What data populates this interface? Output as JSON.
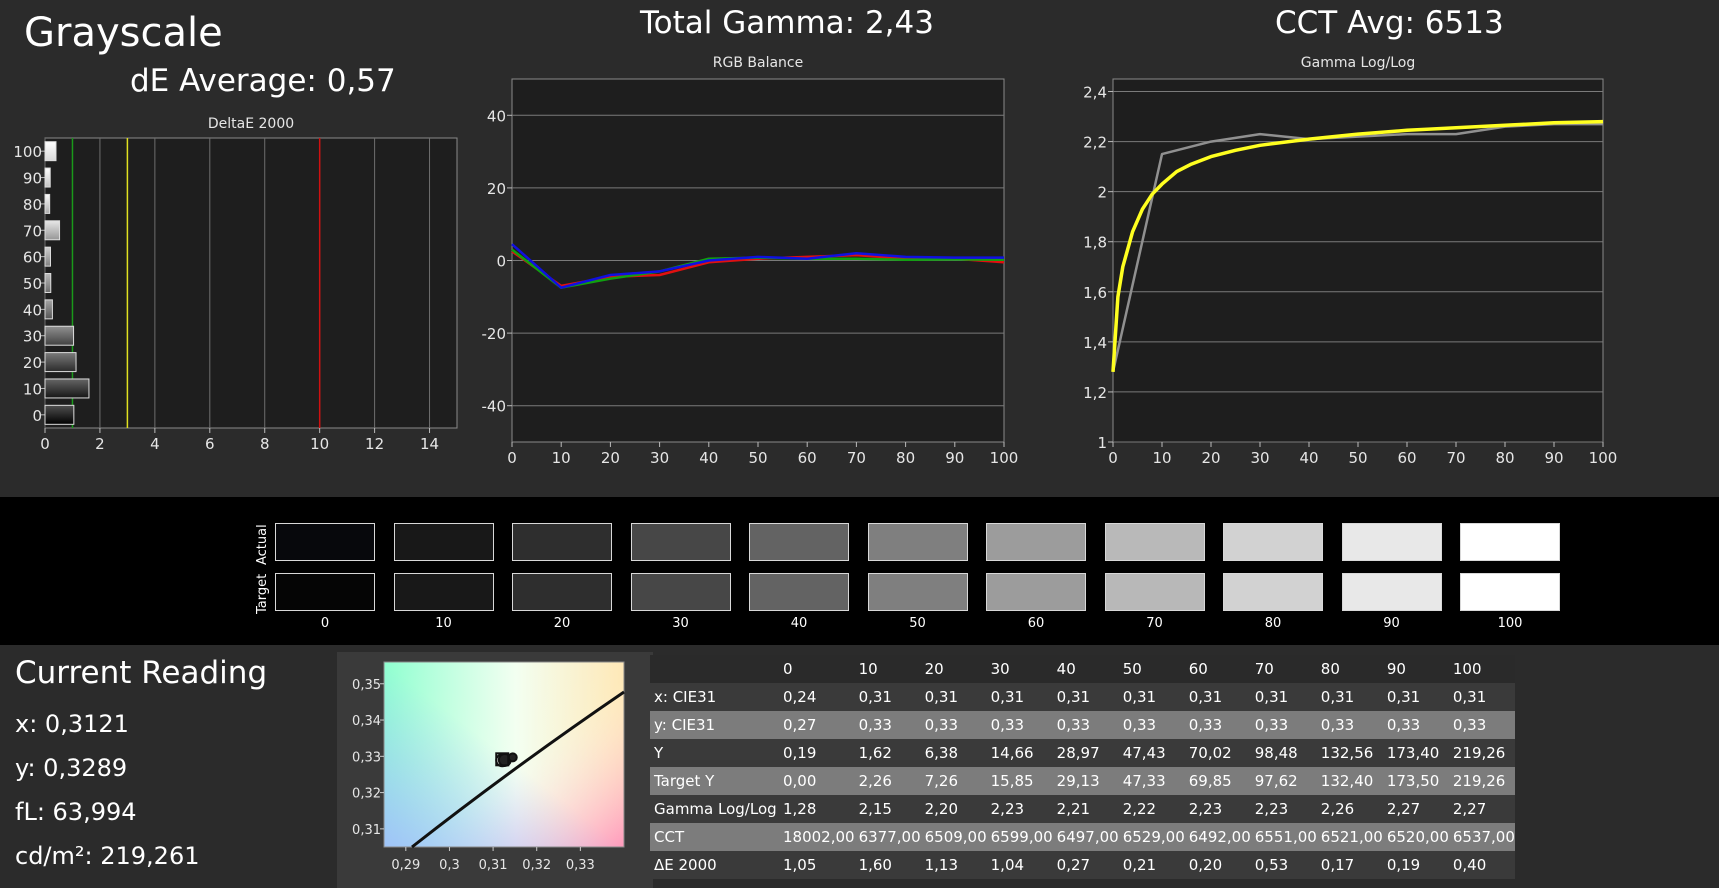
{
  "header": {
    "title": "Grayscale",
    "de_average": "dE Average: 0,57",
    "total_gamma": "Total Gamma: 2,43",
    "cct_avg": "CCT Avg: 6513"
  },
  "colors": {
    "red": "#e01010",
    "green": "#10a010",
    "blue": "#1010e0",
    "yellow": "#ffff20",
    "gray_line": "#909090",
    "good_line": "#1a9a1a",
    "warn_line": "#e0e020",
    "bad_line": "#d01010"
  },
  "chart_data": [
    {
      "type": "bar",
      "title": "DeltaE 2000",
      "orientation": "horizontal",
      "categories": [
        "100",
        "90",
        "80",
        "70",
        "60",
        "50",
        "40",
        "30",
        "20",
        "10",
        "0"
      ],
      "values": [
        0.4,
        0.19,
        0.17,
        0.53,
        0.2,
        0.21,
        0.27,
        1.04,
        1.13,
        1.6,
        1.05
      ],
      "xlim": [
        0,
        15
      ],
      "xticks": [
        "0",
        "2",
        "4",
        "6",
        "8",
        "10",
        "12",
        "14"
      ],
      "threshold_lines": [
        1,
        3,
        10
      ]
    },
    {
      "type": "line",
      "title": "RGB Balance",
      "x": [
        0,
        10,
        20,
        30,
        40,
        50,
        60,
        70,
        80,
        90,
        100
      ],
      "ylim": [
        -50,
        50
      ],
      "yticks": [
        "40",
        "20",
        "0",
        "-20",
        "-40"
      ],
      "xticks": [
        "0",
        "10",
        "20",
        "30",
        "40",
        "50",
        "60",
        "70",
        "80",
        "90",
        "100"
      ],
      "series": [
        {
          "color_key": "red",
          "values": [
            2.5,
            -7,
            -4.5,
            -4,
            -0.5,
            0.5,
            1,
            1.5,
            0.5,
            0.5,
            -0.5
          ]
        },
        {
          "color_key": "green",
          "values": [
            3,
            -7.5,
            -5,
            -3,
            0.5,
            0.8,
            0.5,
            0.5,
            0.2,
            0.3,
            0.2
          ]
        },
        {
          "color_key": "blue",
          "values": [
            4.5,
            -7.5,
            -4,
            -3,
            0,
            1,
            0.5,
            2,
            1,
            0.8,
            0.8
          ]
        }
      ]
    },
    {
      "type": "line",
      "title": "Gamma Log/Log",
      "x": [
        0,
        10,
        20,
        30,
        40,
        50,
        60,
        70,
        80,
        90,
        100
      ],
      "ylim": [
        1,
        2.45
      ],
      "yticks": [
        "2,4",
        "2,2",
        "2",
        "1,8",
        "1,6",
        "1,4",
        "1,2",
        "1"
      ],
      "ytick_values": [
        2.4,
        2.2,
        2.0,
        1.8,
        1.6,
        1.4,
        1.2,
        1.0
      ],
      "xticks": [
        "0",
        "10",
        "20",
        "30",
        "40",
        "50",
        "60",
        "70",
        "80",
        "90",
        "100"
      ],
      "series": [
        {
          "color_key": "gray_line",
          "values": [
            1.28,
            2.15,
            2.2,
            2.23,
            2.21,
            2.22,
            2.23,
            2.23,
            2.26,
            2.27,
            2.27
          ]
        },
        {
          "color_key": "yellow",
          "curve": "target",
          "x": [
            0,
            1,
            2,
            4,
            6,
            8,
            10,
            13,
            16,
            20,
            25,
            30,
            40,
            50,
            60,
            70,
            80,
            90,
            100
          ],
          "values": [
            1.28,
            1.58,
            1.7,
            1.84,
            1.93,
            1.99,
            2.03,
            2.08,
            2.11,
            2.14,
            2.165,
            2.185,
            2.21,
            2.23,
            2.245,
            2.255,
            2.265,
            2.275,
            2.28
          ]
        }
      ]
    },
    {
      "type": "scatter",
      "title": "",
      "xlim": [
        0.285,
        0.34
      ],
      "ylim": [
        0.305,
        0.356
      ],
      "xticks": [
        "0,29",
        "0,3",
        "0,31",
        "0,32",
        "0,33"
      ],
      "xtick_values": [
        0.29,
        0.3,
        0.31,
        0.32,
        0.33
      ],
      "yticks": [
        "0,35",
        "0,34",
        "0,33",
        "0,32",
        "0,31"
      ],
      "ytick_values": [
        0.35,
        0.34,
        0.33,
        0.32,
        0.31
      ],
      "points": [
        {
          "x": 0.3121,
          "y": 0.3289
        },
        {
          "x": 0.3127,
          "y": 0.329
        },
        {
          "x": 0.3145,
          "y": 0.3297
        }
      ]
    }
  ],
  "swatches": {
    "row_labels": [
      "Actual",
      "Target"
    ],
    "labels": [
      "0",
      "10",
      "20",
      "30",
      "40",
      "50",
      "60",
      "70",
      "80",
      "90",
      "100"
    ],
    "actual": [
      "#07080c",
      "#181818",
      "#2e2e2e",
      "#474747",
      "#636363",
      "#7f7f7f",
      "#9c9c9c",
      "#b9b9b9",
      "#d2d2d2",
      "#e8e8e8",
      "#ffffff"
    ],
    "target": [
      "#050505",
      "#181818",
      "#2e2e2e",
      "#474747",
      "#636363",
      "#7f7f7f",
      "#9c9c9c",
      "#b8b8b8",
      "#d2d2d2",
      "#e8e8e8",
      "#ffffff"
    ]
  },
  "reading": {
    "title": "Current Reading",
    "x": "x: 0,3121",
    "y": "y: 0,3289",
    "fl": "fL: 63,994",
    "cdm2": "cd/m²: 219,261"
  },
  "table": {
    "headers": [
      "",
      "0",
      "10",
      "20",
      "30",
      "40",
      "50",
      "60",
      "70",
      "80",
      "90",
      "100"
    ],
    "rows": [
      [
        "x: CIE31",
        "0,24",
        "0,31",
        "0,31",
        "0,31",
        "0,31",
        "0,31",
        "0,31",
        "0,31",
        "0,31",
        "0,31",
        "0,31"
      ],
      [
        "y: CIE31",
        "0,27",
        "0,33",
        "0,33",
        "0,33",
        "0,33",
        "0,33",
        "0,33",
        "0,33",
        "0,33",
        "0,33",
        "0,33"
      ],
      [
        "Y",
        "0,19",
        "1,62",
        "6,38",
        "14,66",
        "28,97",
        "47,43",
        "70,02",
        "98,48",
        "132,56",
        "173,40",
        "219,26"
      ],
      [
        "Target Y",
        "0,00",
        "2,26",
        "7,26",
        "15,85",
        "29,13",
        "47,33",
        "69,85",
        "97,62",
        "132,40",
        "173,50",
        "219,26"
      ],
      [
        "Gamma Log/Log",
        "1,28",
        "2,15",
        "2,20",
        "2,23",
        "2,21",
        "2,22",
        "2,23",
        "2,23",
        "2,26",
        "2,27",
        "2,27"
      ],
      [
        "CCT",
        "18002,00",
        "6377,00",
        "6509,00",
        "6599,00",
        "6497,00",
        "6529,00",
        "6492,00",
        "6551,00",
        "6521,00",
        "6520,00",
        "6537,00"
      ],
      [
        "ΔE 2000",
        "1,05",
        "1,60",
        "1,13",
        "1,04",
        "0,27",
        "0,21",
        "0,20",
        "0,53",
        "0,17",
        "0,19",
        "0,40"
      ]
    ]
  }
}
